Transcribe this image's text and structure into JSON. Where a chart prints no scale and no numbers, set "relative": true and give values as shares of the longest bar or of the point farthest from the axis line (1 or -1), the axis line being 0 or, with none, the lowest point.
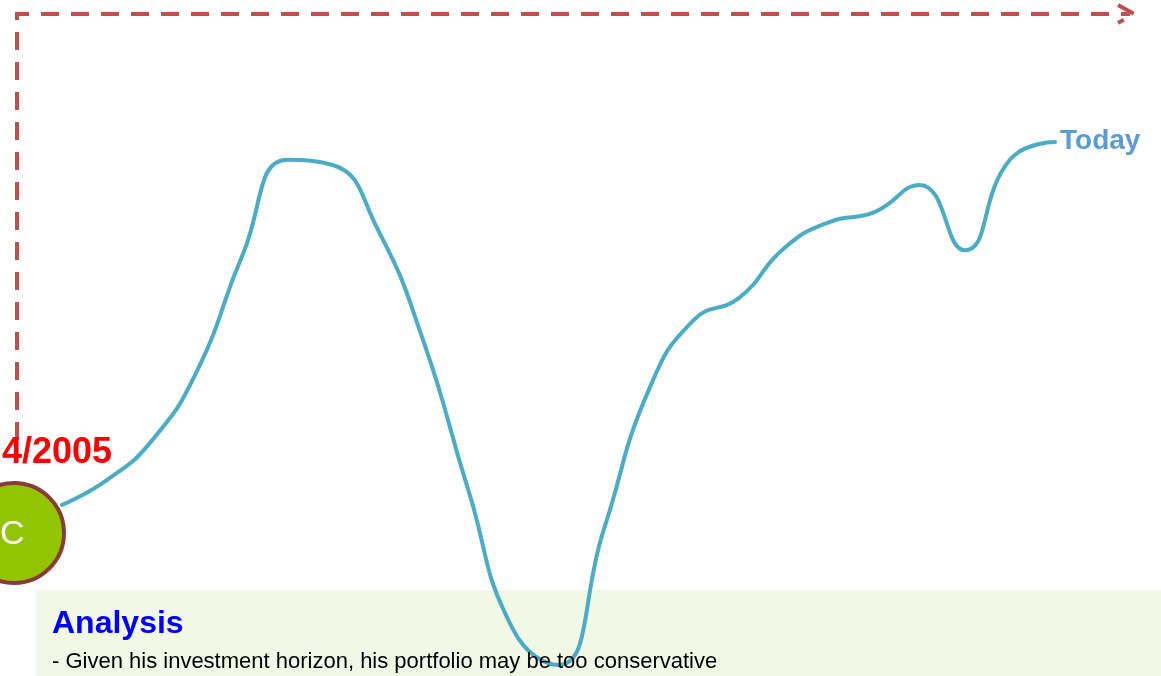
{
  "chart_data": {
    "type": "line",
    "relative": true,
    "categories": [
      null,
      null,
      null,
      null,
      null,
      null,
      null,
      null,
      null,
      null,
      null,
      null,
      null,
      null,
      null,
      null,
      null,
      null,
      null,
      null,
      null,
      null,
      null
    ],
    "series": [
      {
        "color": "#4bacc6",
        "values": [
          0.306,
          0.354,
          0.43,
          0.564,
          0.784,
          0.966,
          0.956,
          0.832,
          0.621,
          0.335,
          0.067,
          0,
          0.258,
          0.526,
          0.66,
          0.702,
          0.797,
          0.847,
          0.866,
          0.918,
          0.793,
          0.966,
          1
        ]
      }
    ],
    "marker": "none",
    "grid": false,
    "annotations": [
      "4/2005",
      "C",
      "Today",
      "Analysis",
      "- Given his investment horizon, his portfolio may be too conservative"
    ]
  }
}
